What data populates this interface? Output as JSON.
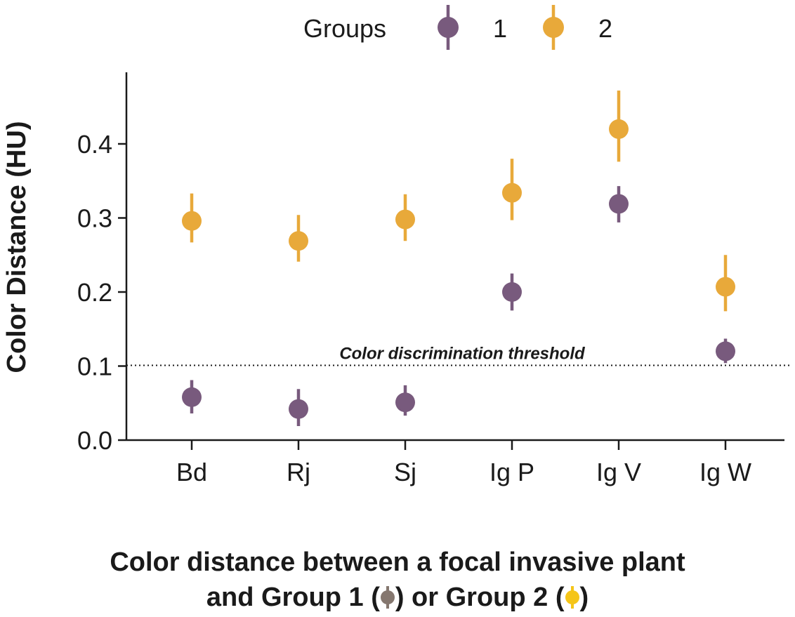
{
  "chart_data": {
    "type": "scatter",
    "legend": {
      "title": "Groups",
      "placement": "top"
    },
    "ylabel": "Color Distance (HU)",
    "ylim": [
      0,
      0.48
    ],
    "yticks": [
      0.0,
      0.1,
      0.2,
      0.3,
      0.4
    ],
    "ytick_labels": [
      "0.0",
      "0.1",
      "0.2",
      "0.3",
      "0.4"
    ],
    "categories": [
      "Bd",
      "Rj",
      "Sj",
      "Ig P",
      "Ig V",
      "Ig W"
    ],
    "series": [
      {
        "name": "1",
        "color": "#785a7d",
        "values": [
          0.058,
          0.042,
          0.051,
          0.2,
          0.319,
          0.12
        ],
        "lower": [
          0.036,
          0.019,
          0.033,
          0.175,
          0.294,
          0.104
        ],
        "upper": [
          0.081,
          0.069,
          0.074,
          0.225,
          0.343,
          0.137
        ]
      },
      {
        "name": "2",
        "color": "#e8a93a",
        "values": [
          0.296,
          0.269,
          0.298,
          0.334,
          0.42,
          0.207
        ],
        "lower": [
          0.267,
          0.241,
          0.269,
          0.297,
          0.376,
          0.174
        ],
        "upper": [
          0.333,
          0.304,
          0.332,
          0.38,
          0.472,
          0.25
        ]
      }
    ],
    "threshold": {
      "value": 0.101,
      "label": "Color discrimination threshold"
    }
  },
  "caption": {
    "line1": "Color distance between a focal invasive plant",
    "line2_part1": "and Group 1 (",
    "line2_part2": ") or Group 2 (",
    "line2_part3": ")",
    "icon1_color": "#85776f",
    "icon2_color": "#f5c518"
  }
}
